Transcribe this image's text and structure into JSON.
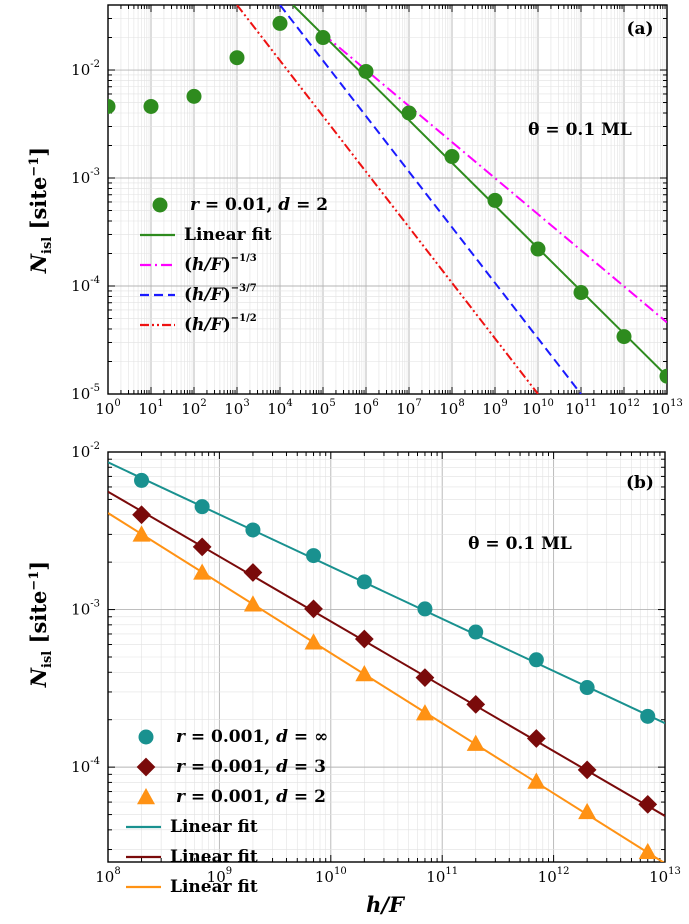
{
  "figure": {
    "y_label_main": "N",
    "y_label_sub": "isl",
    "y_label_unit": "[site",
    "y_label_unit_exp": "−1",
    "y_label_close": "]",
    "x_label": "h/F"
  },
  "chart_data": [
    {
      "type": "scatter",
      "panel_label": "(a)",
      "annotation": "θ = 0.1 ML",
      "x_scale": "log",
      "y_scale": "log",
      "xlim": [
        1,
        10000000000000.0
      ],
      "ylim": [
        1e-05,
        0.04
      ],
      "grid": true,
      "legend_position": "left",
      "x_ticks": [
        {
          "base": "10",
          "exp": "0"
        },
        {
          "base": "10",
          "exp": "1"
        },
        {
          "base": "10",
          "exp": "2"
        },
        {
          "base": "10",
          "exp": "3"
        },
        {
          "base": "10",
          "exp": "4"
        },
        {
          "base": "10",
          "exp": "5"
        },
        {
          "base": "10",
          "exp": "6"
        },
        {
          "base": "10",
          "exp": "7"
        },
        {
          "base": "10",
          "exp": "8"
        },
        {
          "base": "10",
          "exp": "9"
        },
        {
          "base": "10",
          "exp": "10"
        },
        {
          "base": "10",
          "exp": "11"
        },
        {
          "base": "10",
          "exp": "12"
        },
        {
          "base": "10",
          "exp": "13"
        }
      ],
      "y_ticks": [
        {
          "base": "10",
          "exp": "-2"
        },
        {
          "base": "10",
          "exp": "-3"
        },
        {
          "base": "10",
          "exp": "-4"
        },
        {
          "base": "10",
          "exp": "-5"
        }
      ],
      "series": [
        {
          "kind": "points",
          "marker": "circle",
          "color": "#2e8b1e",
          "legend": {
            "r": "r",
            "r_val": " = 0.01, ",
            "d": "d",
            "d_val": " = 2"
          },
          "x": [
            1,
            10,
            100,
            1000,
            10000,
            100000,
            1000000,
            10000000,
            100000000,
            1000000000,
            10000000000,
            100000000000,
            1000000000000,
            10000000000000
          ],
          "y": [
            0.0046,
            0.0046,
            0.0057,
            0.013,
            0.027,
            0.02,
            0.0097,
            0.004,
            0.00158,
            0.00062,
            0.00022,
            8.7e-05,
            3.4e-05,
            1.46e-05
          ]
        },
        {
          "kind": "line",
          "style": "solid",
          "color": "#2e8b1e",
          "legend_text": "Linear fit",
          "x": [
            20000,
            10000000000000
          ],
          "y": [
            0.04,
            1.46e-05
          ]
        },
        {
          "kind": "line",
          "style": "dashdot",
          "color": "#ff00ff",
          "legend_base": "(h/F)",
          "legend_exp": "−1/3",
          "x": [
            100000,
            10000000000000
          ],
          "y": [
            0.0216,
            4.6e-05
          ]
        },
        {
          "kind": "line",
          "style": "dashed",
          "color": "#1a1aff",
          "legend_base": "(h/F)",
          "legend_exp": "−3/7",
          "x": [
            10000,
            100000000000
          ],
          "y": [
            0.04,
            1e-05
          ]
        },
        {
          "kind": "line",
          "style": "dashdotdot",
          "color": "#ee1111",
          "legend_base": "(h/F)",
          "legend_exp": "−1/2",
          "x": [
            1000,
            10000000000
          ],
          "y": [
            0.04,
            1e-05
          ]
        }
      ]
    },
    {
      "type": "scatter",
      "panel_label": "(b)",
      "annotation": "θ = 0.1 ML",
      "x_scale": "log",
      "y_scale": "log",
      "xlim": [
        100000000,
        10000000000000
      ],
      "ylim": [
        2.5e-05,
        0.01
      ],
      "grid": true,
      "legend_position": "left",
      "x_ticks": [
        {
          "base": "10",
          "exp": "8"
        },
        {
          "base": "10",
          "exp": "9"
        },
        {
          "base": "10",
          "exp": "10"
        },
        {
          "base": "10",
          "exp": "11"
        },
        {
          "base": "10",
          "exp": "12"
        },
        {
          "base": "10",
          "exp": "13"
        }
      ],
      "y_ticks": [
        {
          "base": "10",
          "exp": "-2"
        },
        {
          "base": "10",
          "exp": "-3"
        },
        {
          "base": "10",
          "exp": "-4"
        }
      ],
      "series": [
        {
          "kind": "points",
          "marker": "circle",
          "color": "#19918f",
          "legend": {
            "r": "r",
            "r_val": " = 0.001, ",
            "d": "d",
            "d_val": " = ∞"
          },
          "x": [
            200000000,
            700000000,
            2000000000,
            7000000000,
            20000000000,
            70000000000,
            200000000000,
            700000000000,
            2000000000000,
            7000000000000
          ],
          "y": [
            0.0066,
            0.0045,
            0.0032,
            0.0022,
            0.0015,
            0.00101,
            0.00072,
            0.00048,
            0.00032,
            0.00021
          ]
        },
        {
          "kind": "points",
          "marker": "diamond",
          "color": "#7a0a0a",
          "legend": {
            "r": "r",
            "r_val": " = 0.001, ",
            "d": "d",
            "d_val": " = 3"
          },
          "x": [
            200000000,
            700000000,
            2000000000,
            7000000000,
            20000000000,
            70000000000,
            200000000000,
            700000000000,
            2000000000000,
            7000000000000
          ],
          "y": [
            0.004,
            0.0025,
            0.00172,
            0.00101,
            0.00065,
            0.00037,
            0.00025,
            0.000152,
            9.6e-05,
            5.8e-05
          ]
        },
        {
          "kind": "points",
          "marker": "triangle",
          "color": "#ff9214",
          "legend": {
            "r": "r",
            "r_val": " = 0.001, ",
            "d": "d",
            "d_val": " = 2"
          },
          "x": [
            200000000,
            700000000,
            2000000000,
            7000000000,
            20000000000,
            70000000000,
            200000000000,
            700000000000,
            2000000000000,
            7000000000000
          ],
          "y": [
            0.003,
            0.00172,
            0.00108,
            0.00062,
            0.00039,
            0.00022,
            0.000141,
            8.1e-05,
            5.2e-05,
            2.9e-05
          ]
        },
        {
          "kind": "line",
          "style": "solid",
          "color": "#19918f",
          "legend_text": "Linear fit",
          "x": [
            100000000,
            10000000000000
          ],
          "y": [
            0.0086,
            0.00019
          ]
        },
        {
          "kind": "line",
          "style": "solid",
          "color": "#7a0a0a",
          "legend_text": "Linear fit",
          "x": [
            100000000,
            10000000000000
          ],
          "y": [
            0.0056,
            4.9e-05
          ]
        },
        {
          "kind": "line",
          "style": "solid",
          "color": "#ff9214",
          "legend_text": "Linear fit",
          "x": [
            100000000,
            10000000000000
          ],
          "y": [
            0.0041,
            2.45e-05
          ]
        }
      ]
    }
  ]
}
